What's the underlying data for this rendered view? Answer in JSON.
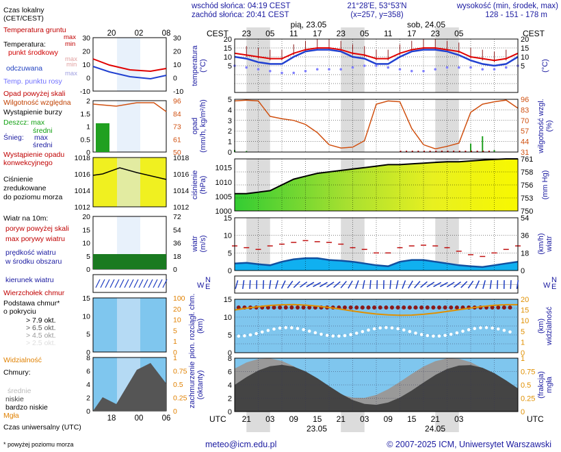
{
  "header": {
    "sunrise": "wschód słońca: 04:19 CEST",
    "sunset": "zachód słońca: 20:41 CEST",
    "coords": "21°28'E, 53°53'N",
    "grid": "(x=257,  y=358)",
    "altitude_label": "wysokość (min, środek, max)",
    "altitude_values": "128 - 151 - 178 m"
  },
  "timezone_top": "CEST",
  "timezone_bottom": "UTC",
  "days_top": [
    "pią, 23.05",
    "sob, 24.05"
  ],
  "days_bottom": [
    "23.05",
    "24.05"
  ],
  "hours_top": [
    "23",
    "05",
    "11",
    "17",
    "23",
    "05",
    "11",
    "17",
    "23",
    "05"
  ],
  "hours_bottom": [
    "21",
    "03",
    "09",
    "15",
    "21",
    "03",
    "09",
    "15",
    "21",
    "03"
  ],
  "legend": {
    "local_time": "Czas lokalny",
    "local_time2": "(CET/CEST)",
    "local_hours": [
      "20",
      "02",
      "08"
    ],
    "ground_temp": "Temperatura gruntu",
    "ground_max": "max",
    "ground_min": "min",
    "temperature": "Temperatura:",
    "mid_point": "punkt środkowy",
    "mid_max": "max",
    "mid_min": "min",
    "perceived": "odczuwana",
    "perc_max": "max",
    "perc_min": "min",
    "dew_point": "Temp. punktu rosy",
    "precip_over": "Opad powyżej skali",
    "humidity": "Wilgotność względna",
    "storm": "Wystąpienie burzy",
    "rain": "Deszcz: max",
    "rain_mid": "średni",
    "snow": "Śnieg:",
    "snow_max": "max",
    "snow_mid": "średni",
    "conv1": "Wystąpienie opadu",
    "conv2": "konwekcyjnego",
    "pressure1": "Ciśnienie",
    "pressure2": "zredukowane",
    "pressure3": "do poziomu morza",
    "wind10": "Wiatr na 10m:",
    "gust_over": "poryw powyżej skali",
    "gust_max": "max porywy wiatru",
    "wind_speed": "prędkość wiatru",
    "wind_area": "w środku obszaru",
    "wind_dir": "kierunek wiatru",
    "cloud_top": "Wierzchołek chmur",
    "cloud_base1": "Podstawa chmur*",
    "cloud_base2": "o pokryciu",
    "okt": [
      "> 7.9 okt.",
      "> 6.5 okt.",
      "> 4.5 okt.",
      "> 2.5 okt.",
      "> 0.1 okt."
    ],
    "visibility": "Widzialność",
    "clouds": "Chmury:",
    "high": "wysokie",
    "mid": "średnie",
    "low": "niskie",
    "very_low": "bardzo niskie",
    "fog": "Mgła",
    "utc_label": "Czas uniwersalny (UTC)",
    "utc_hours": [
      "18",
      "00",
      "06"
    ],
    "footnote": "* powyżej poziomu morza"
  },
  "axes": {
    "temp": "temperatura\n(°C)",
    "temp_r": "(°C)",
    "precip": "opad\n(mm/h, kg/m²/h)",
    "humid": "wilgotność wzgl.\n(%)",
    "press": "ciśnienie\n(hPa)",
    "press_r": "(mm Hg)",
    "wind": "wiatr\n(m/s)",
    "wind_r": "(km/h)\nwiatr",
    "cloud_l": "pion. rozciągł. chm.\n(km)",
    "cloud_r": "(km)\nwidzialność",
    "cover_l": "zachmurzenie\n(oktanty)",
    "cover_r": "(frakcja)\nmgła"
  },
  "footer": {
    "email": "meteo@icm.edu.pl",
    "copyright": "© 2007-2025 ICM, Uniwersytet Warszawski"
  },
  "colors": {
    "temp": "#e00000",
    "perceived": "#2040d0",
    "dew": "#8080ff",
    "humidity": "#d05010",
    "precip": "#20a020",
    "pressure": "#000000",
    "wind_fill": "#10b0f0",
    "wind_dark": "#1050a0",
    "gust": "#c01010",
    "orange": "#e09000",
    "night": "#d8d8d8",
    "cloud_bg": "#7fc6ee"
  },
  "chart_data": [
    {
      "type": "line",
      "title": "temperatura",
      "ylabel": "temperatura (°C)",
      "ylim": [
        -10,
        20
      ],
      "x_hours_utc": [
        18,
        21,
        24,
        27,
        30,
        33,
        36,
        39,
        42,
        45,
        48,
        51,
        54,
        57,
        60,
        63,
        66,
        69,
        72,
        75,
        78,
        81,
        84,
        87,
        90
      ],
      "series": [
        {
          "name": "punkt środkowy",
          "values": [
            12,
            11,
            10,
            9,
            9,
            12,
            14,
            15,
            15,
            14,
            12,
            11,
            9,
            9,
            12,
            14,
            15,
            15,
            14,
            13,
            10,
            9,
            8,
            9,
            12
          ]
        },
        {
          "name": "odczuwana",
          "values": [
            10,
            9,
            7,
            6,
            6,
            10,
            13,
            14,
            14,
            13,
            10,
            9,
            6,
            6,
            10,
            13,
            14,
            14,
            13,
            11,
            8,
            6,
            5,
            6,
            10
          ]
        },
        {
          "name": "Temp. punktu rosy",
          "values": [
            5,
            4,
            3,
            2,
            1,
            1,
            2,
            3,
            3,
            3,
            4,
            5,
            5,
            4,
            3,
            2,
            2,
            3,
            4,
            4,
            4,
            3,
            3,
            4,
            5
          ]
        }
      ],
      "yticks": [
        -10,
        -5,
        0,
        5,
        10,
        15,
        20
      ]
    },
    {
      "type": "line",
      "title": "opad / wilgotność",
      "ylim": [
        0,
        5
      ],
      "y2lim": [
        31,
        96
      ],
      "y2ticks": [
        31,
        44,
        57,
        70,
        83,
        96
      ],
      "yticks": [
        0,
        1,
        2,
        3,
        4,
        5
      ],
      "humidity": [
        94,
        95,
        94,
        75,
        72,
        70,
        65,
        55,
        40,
        36,
        37,
        45,
        90,
        94,
        93,
        60,
        40,
        35,
        38,
        42,
        80,
        90,
        93,
        95,
        85
      ],
      "precip_mid": [
        0.2,
        0.1,
        0,
        0,
        0,
        0,
        0,
        0,
        0,
        0,
        0,
        0,
        0,
        0,
        0,
        0,
        0,
        0,
        0,
        0,
        0.8,
        1.5,
        0.2,
        0,
        0
      ]
    },
    {
      "type": "area",
      "title": "ciśnienie",
      "ylim": [
        1000,
        1018
      ],
      "yticks": [
        1000,
        1005,
        1010,
        1015
      ],
      "y2ticks": [
        "750",
        "753",
        "756",
        "758",
        "761"
      ],
      "values": [
        1006,
        1006,
        1006.5,
        1007,
        1009,
        1011,
        1012,
        1013,
        1013.5,
        1014,
        1014.5,
        1015,
        1015.5,
        1016,
        1016,
        1016.3,
        1016.5,
        1016.8,
        1017,
        1017,
        1017.3,
        1017.6,
        1017.8,
        1018,
        1018
      ]
    },
    {
      "type": "area",
      "title": "wiatr",
      "ylim": [
        0,
        15
      ],
      "yticks": [
        0,
        5,
        10,
        15
      ],
      "y2ticks": [
        "0",
        "18",
        "36",
        "54"
      ],
      "speed": [
        2,
        2.2,
        1.8,
        1.5,
        2.5,
        3.2,
        3.5,
        3.5,
        3,
        2.8,
        2.5,
        2,
        1.5,
        1.2,
        2.5,
        3,
        3,
        2.5,
        2,
        1.5,
        1.2,
        1,
        1.5,
        2,
        2.5
      ],
      "gust": [
        7,
        6.5,
        6,
        7,
        7.5,
        8,
        8.5,
        8.2,
        8,
        7.5,
        6.5,
        6,
        5,
        5,
        6.5,
        7,
        7.2,
        7,
        6.5,
        5.5,
        4.5,
        4,
        5,
        6,
        7
      ]
    },
    {
      "type": "scatter",
      "title": "chmury",
      "ylim": [
        0,
        15
      ],
      "yticks": [
        0,
        2.5,
        5,
        7.5,
        10,
        12.5,
        15
      ],
      "y2ticks": [
        "0",
        "1",
        "5",
        "10",
        "15",
        "20"
      ]
    },
    {
      "type": "area",
      "title": "zachmurzenie",
      "ylim": [
        0,
        8
      ],
      "yticks": [
        0,
        2,
        4,
        6,
        8
      ],
      "y2ticks": [
        "0",
        "0.25",
        "0.5",
        "0.75",
        "1"
      ]
    }
  ]
}
